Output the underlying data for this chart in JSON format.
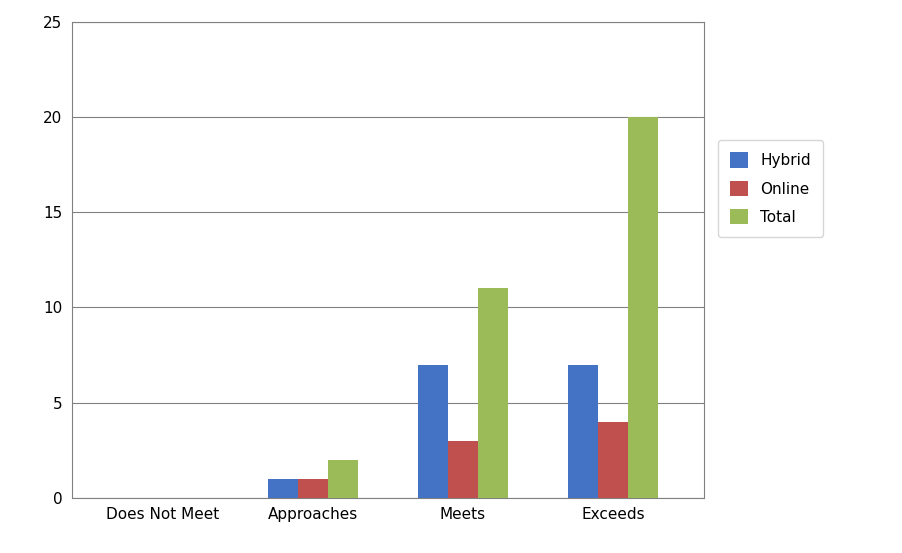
{
  "categories": [
    "Does Not Meet",
    "Approaches",
    "Meets",
    "Exceeds"
  ],
  "series": {
    "Hybrid": [
      0,
      1,
      7,
      7
    ],
    "Online": [
      0,
      1,
      3,
      4
    ],
    "Total": [
      0,
      2,
      11,
      20
    ]
  },
  "series_order": [
    "Hybrid",
    "Online",
    "Total"
  ],
  "colors": {
    "Hybrid": "#4472C4",
    "Online": "#C0504D",
    "Total": "#9BBB59"
  },
  "ylim": [
    0,
    25
  ],
  "yticks": [
    0,
    5,
    10,
    15,
    20,
    25
  ],
  "bar_width": 0.2,
  "background_color": "#FFFFFF",
  "grid_color": "#808080",
  "tick_label_fontsize": 11,
  "legend_fontsize": 11,
  "spine_color": "#808080"
}
